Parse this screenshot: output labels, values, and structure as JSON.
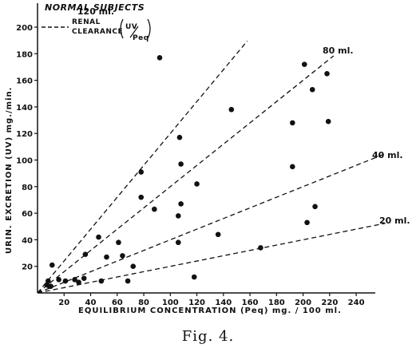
{
  "chart_data": {
    "type": "scatter",
    "title": "NORMAL SUBJECTS",
    "xlabel": "EQUILIBRIUM   CONCENTRATION   (Peq)   mg. / 100 ml.",
    "ylabel": "URIN. EXCRETION (UV) mg./min.",
    "xlim": [
      0,
      250
    ],
    "ylim": [
      0,
      215
    ],
    "x_ticks": [
      20,
      40,
      60,
      80,
      100,
      120,
      140,
      160,
      180,
      200,
      220,
      240
    ],
    "y_ticks": [
      20,
      40,
      60,
      80,
      100,
      120,
      140,
      160,
      180,
      200
    ],
    "grid": false,
    "legend": {
      "line1": "RENAL",
      "line2": "CLEARANCE",
      "formula_top": "UV",
      "formula_bottom": "Peq"
    },
    "reference_lines": [
      {
        "label": "120 ml.",
        "slope": 1.2
      },
      {
        "label": "80 ml.",
        "slope": 0.8
      },
      {
        "label": "40 ml.",
        "slope": 0.4
      },
      {
        "label": "20 ml.",
        "slope": 0.2
      }
    ],
    "points": [
      {
        "x": 7,
        "y": 6
      },
      {
        "x": 8,
        "y": 9
      },
      {
        "x": 9,
        "y": 5
      },
      {
        "x": 10,
        "y": 5
      },
      {
        "x": 11,
        "y": 21
      },
      {
        "x": 16,
        "y": 10
      },
      {
        "x": 21,
        "y": 9
      },
      {
        "x": 28,
        "y": 10
      },
      {
        "x": 31,
        "y": 8
      },
      {
        "x": 35,
        "y": 11
      },
      {
        "x": 36,
        "y": 29
      },
      {
        "x": 46,
        "y": 42
      },
      {
        "x": 48,
        "y": 9
      },
      {
        "x": 52,
        "y": 27
      },
      {
        "x": 61,
        "y": 38
      },
      {
        "x": 64,
        "y": 28
      },
      {
        "x": 68,
        "y": 9
      },
      {
        "x": 72,
        "y": 20
      },
      {
        "x": 78,
        "y": 91
      },
      {
        "x": 78,
        "y": 72
      },
      {
        "x": 88,
        "y": 63
      },
      {
        "x": 92,
        "y": 177
      },
      {
        "x": 106,
        "y": 38
      },
      {
        "x": 106,
        "y": 58
      },
      {
        "x": 107,
        "y": 117
      },
      {
        "x": 108,
        "y": 97
      },
      {
        "x": 108,
        "y": 67
      },
      {
        "x": 118,
        "y": 12
      },
      {
        "x": 120,
        "y": 82
      },
      {
        "x": 136,
        "y": 44
      },
      {
        "x": 146,
        "y": 138
      },
      {
        "x": 168,
        "y": 34
      },
      {
        "x": 192,
        "y": 128
      },
      {
        "x": 192,
        "y": 95
      },
      {
        "x": 201,
        "y": 172
      },
      {
        "x": 203,
        "y": 53
      },
      {
        "x": 207,
        "y": 153
      },
      {
        "x": 209,
        "y": 65
      },
      {
        "x": 218,
        "y": 165
      },
      {
        "x": 219,
        "y": 129
      }
    ]
  },
  "caption": "Fig. 4."
}
